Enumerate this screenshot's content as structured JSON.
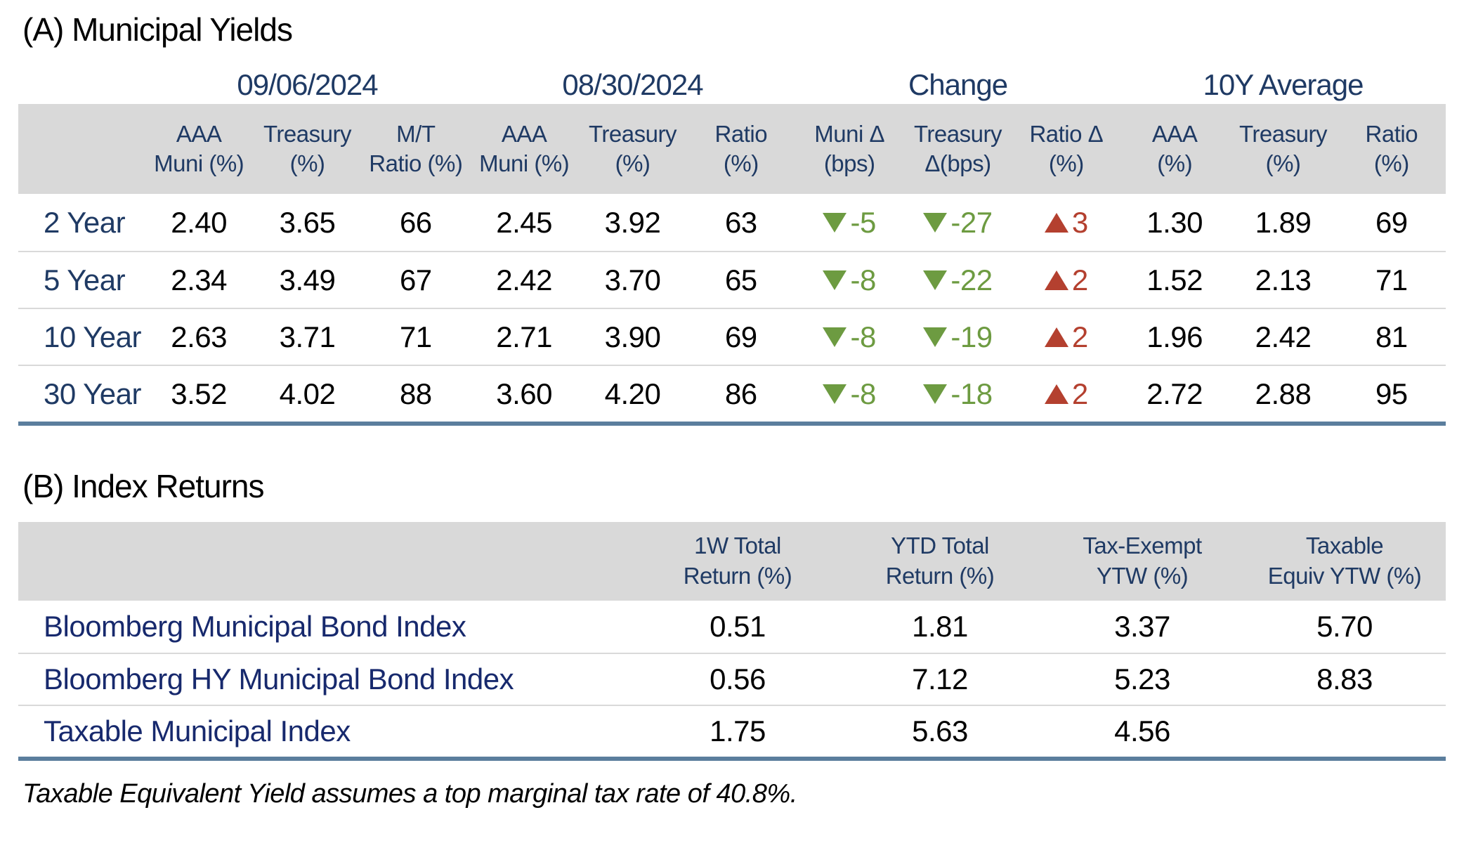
{
  "colors": {
    "navy": "#1f3a64",
    "label-navy": "#17296d",
    "green": "#6d9b41",
    "red": "#b4402f",
    "header-bg": "#d9d9d9",
    "row-line": "#d9d9d9",
    "steel": "#5b7e9d",
    "text": "#000000"
  },
  "table_a": {
    "title": "(A) Municipal Yields",
    "group_headers": [
      "09/06/2024",
      "08/30/2024",
      "Change",
      "10Y Average"
    ],
    "col_headers": [
      [
        "AAA",
        "Muni (%)"
      ],
      [
        "Treasury",
        "(%)"
      ],
      [
        "M/T",
        "Ratio (%)"
      ],
      [
        "AAA",
        "Muni (%)"
      ],
      [
        "Treasury",
        "(%)"
      ],
      [
        "Ratio",
        "(%)"
      ],
      [
        "Muni Δ",
        "(bps)"
      ],
      [
        "Treasury",
        "Δ(bps)"
      ],
      [
        "Ratio Δ",
        "(%)"
      ],
      [
        "AAA",
        "(%)"
      ],
      [
        "Treasury",
        "(%)"
      ],
      [
        "Ratio",
        "(%)"
      ]
    ],
    "rows": [
      {
        "label": "2 Year",
        "v0906": [
          "2.40",
          "3.65",
          "66"
        ],
        "v0830": [
          "2.45",
          "3.92",
          "63"
        ],
        "changes": [
          {
            "dir": "down",
            "value": "-5"
          },
          {
            "dir": "down",
            "value": "-27"
          },
          {
            "dir": "up",
            "value": "3"
          }
        ],
        "avg10y": [
          "1.30",
          "1.89",
          "69"
        ]
      },
      {
        "label": "5 Year",
        "v0906": [
          "2.34",
          "3.49",
          "67"
        ],
        "v0830": [
          "2.42",
          "3.70",
          "65"
        ],
        "changes": [
          {
            "dir": "down",
            "value": "-8"
          },
          {
            "dir": "down",
            "value": "-22"
          },
          {
            "dir": "up",
            "value": "2"
          }
        ],
        "avg10y": [
          "1.52",
          "2.13",
          "71"
        ]
      },
      {
        "label": "10 Year",
        "v0906": [
          "2.63",
          "3.71",
          "71"
        ],
        "v0830": [
          "2.71",
          "3.90",
          "69"
        ],
        "changes": [
          {
            "dir": "down",
            "value": "-8"
          },
          {
            "dir": "down",
            "value": "-19"
          },
          {
            "dir": "up",
            "value": "2"
          }
        ],
        "avg10y": [
          "1.96",
          "2.42",
          "81"
        ]
      },
      {
        "label": "30 Year",
        "v0906": [
          "3.52",
          "4.02",
          "88"
        ],
        "v0830": [
          "3.60",
          "4.20",
          "86"
        ],
        "changes": [
          {
            "dir": "down",
            "value": "-8"
          },
          {
            "dir": "down",
            "value": "-18"
          },
          {
            "dir": "up",
            "value": "2"
          }
        ],
        "avg10y": [
          "2.72",
          "2.88",
          "95"
        ]
      }
    ]
  },
  "table_b": {
    "title": "(B) Index Returns",
    "col_headers": [
      [
        "1W Total",
        "Return (%)"
      ],
      [
        "YTD Total",
        "Return (%)"
      ],
      [
        "Tax-Exempt",
        "YTW (%)"
      ],
      [
        "Taxable",
        "Equiv YTW (%)"
      ]
    ],
    "rows": [
      {
        "label": "Bloomberg Municipal Bond Index",
        "values": [
          "0.51",
          "1.81",
          "3.37",
          "5.70"
        ]
      },
      {
        "label": "Bloomberg HY Municipal Bond Index",
        "values": [
          "0.56",
          "7.12",
          "5.23",
          "8.83"
        ]
      },
      {
        "label": "Taxable Municipal Index",
        "values": [
          "1.75",
          "5.63",
          "4.56",
          ""
        ]
      }
    ]
  },
  "footnote": "Taxable Equivalent Yield assumes a top marginal tax rate of 40.8%."
}
